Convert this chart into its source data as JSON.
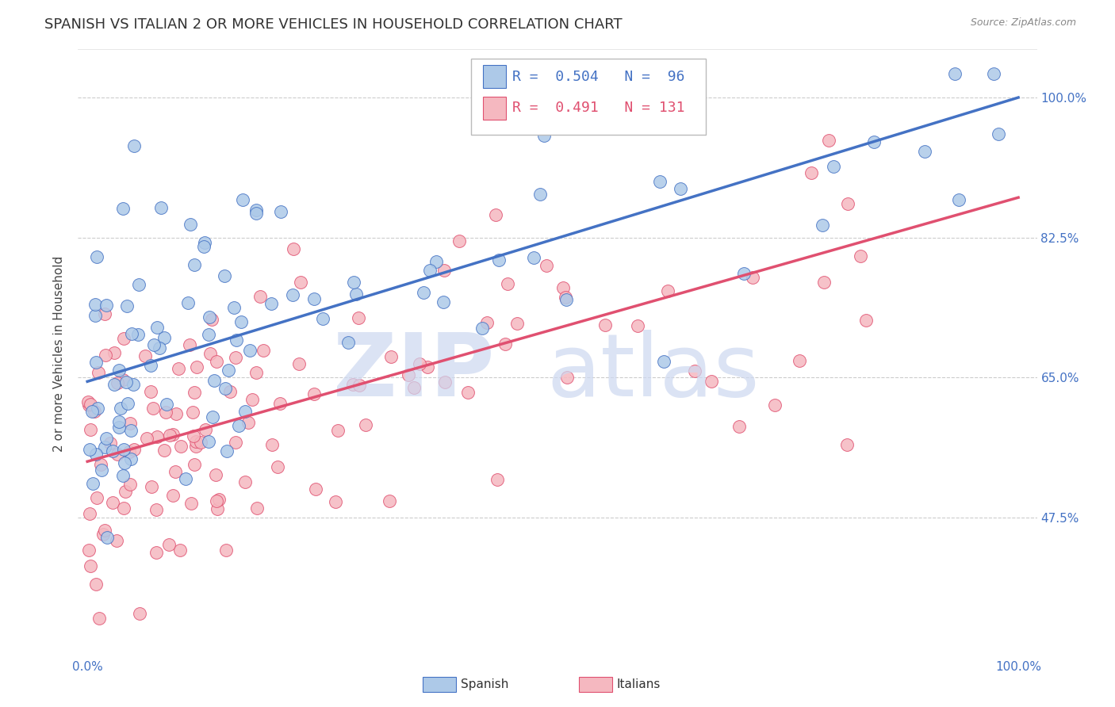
{
  "title": "SPANISH VS ITALIAN 2 OR MORE VEHICLES IN HOUSEHOLD CORRELATION CHART",
  "source": "Source: ZipAtlas.com",
  "ylabel": "2 or more Vehicles in Household",
  "xlabel": "",
  "xlim": [
    0.0,
    1.0
  ],
  "ylim": [
    0.3,
    1.05
  ],
  "xtick_labels": [
    "0.0%",
    "100.0%"
  ],
  "ytick_labels": [
    "47.5%",
    "65.0%",
    "82.5%",
    "100.0%"
  ],
  "ytick_positions": [
    0.475,
    0.65,
    0.825,
    1.0
  ],
  "legend_R_spanish": "0.504",
  "legend_N_spanish": "96",
  "legend_R_italian": "0.491",
  "legend_N_italian": "131",
  "spanish_color": "#adc9e8",
  "italian_color": "#f5b8c0",
  "spanish_line_color": "#4472c4",
  "italian_line_color": "#e05070",
  "watermark_color": "#cdd8f0",
  "spanish_n": 96,
  "italian_n": 131,
  "spanish_R": 0.504,
  "italian_R": 0.491,
  "sp_line_y0": 0.645,
  "sp_line_y1": 1.0,
  "it_line_y0": 0.545,
  "it_line_y1": 0.875,
  "title_fontsize": 13,
  "axis_label_fontsize": 11,
  "tick_fontsize": 11,
  "legend_fontsize": 13
}
